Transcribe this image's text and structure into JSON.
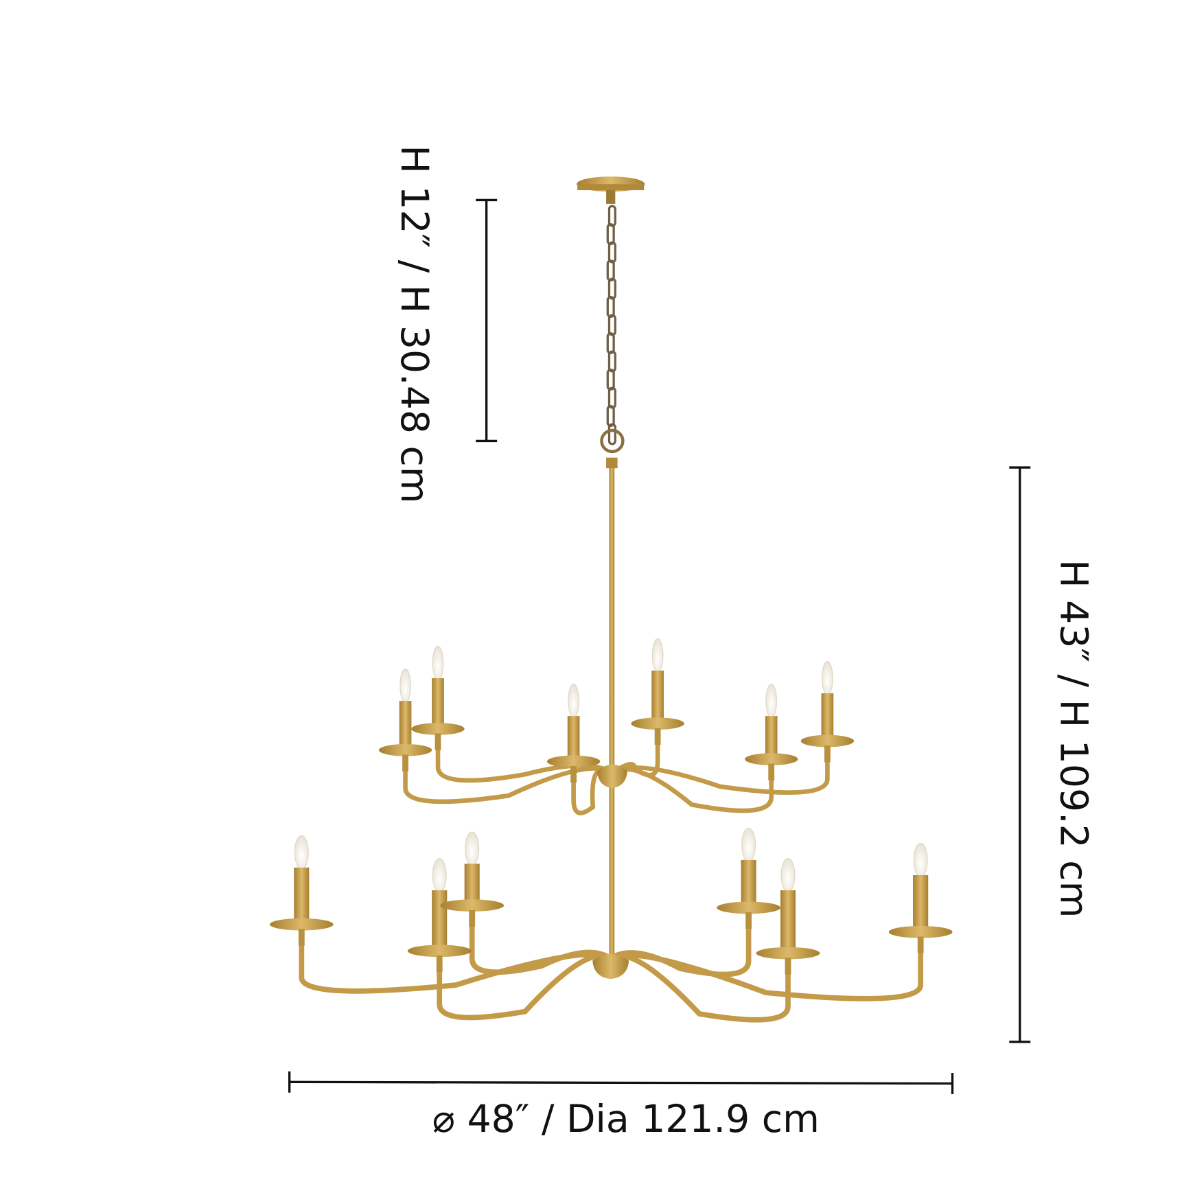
{
  "dimensions": {
    "chain_height": "H 12″ / H 30.48 cm",
    "body_height": "H 43″ / H 109.2 cm",
    "diameter": "⌀ 48″ / Dia 121.9 cm"
  },
  "colors": {
    "brass": "#c9a24f",
    "brass_dark": "#a67f2e",
    "dimension_line": "#111111",
    "background": "#ffffff"
  },
  "product": {
    "upper_tier_lights": 6,
    "lower_tier_lights": 6
  }
}
